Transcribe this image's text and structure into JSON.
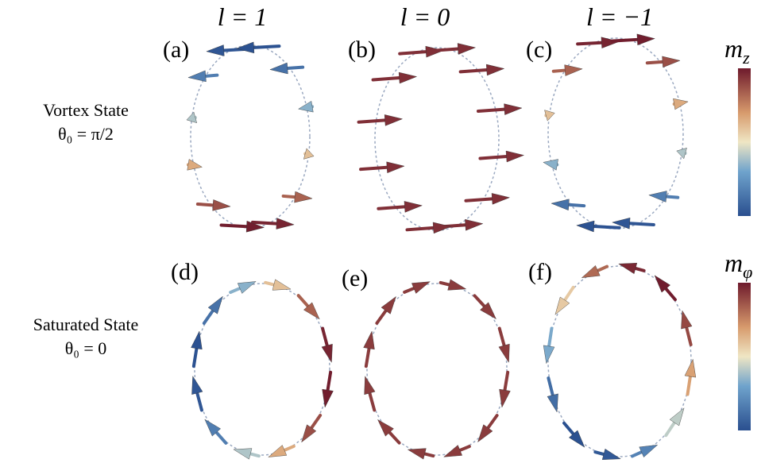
{
  "columns": [
    "l = 1",
    "l = 0",
    "l = −1"
  ],
  "panels": [
    "(a)",
    "(b)",
    "(c)",
    "(d)",
    "(e)",
    "(f)"
  ],
  "rows": [
    {
      "title": "Vortex State",
      "condition": "θ₀ = π/2"
    },
    {
      "title": "Saturated State",
      "condition": "θ₀ = 0"
    }
  ],
  "colorbars": [
    {
      "symbol": "m",
      "subscript": "z"
    },
    {
      "symbol": "m",
      "subscript": "φ"
    }
  ]
}
